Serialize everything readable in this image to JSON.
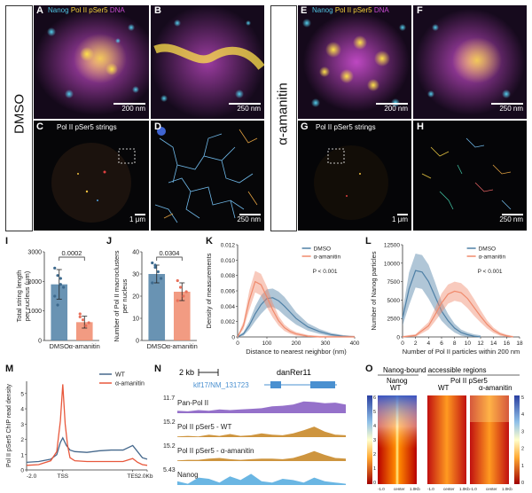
{
  "conditions": {
    "dmso": "DMSO",
    "amanitin": "α-amanitin"
  },
  "panels": {
    "A": "A",
    "B": "B",
    "C": "C",
    "D": "D",
    "E": "E",
    "F": "F",
    "G": "G",
    "H": "H",
    "I": "I",
    "J": "J",
    "K": "K",
    "L": "L",
    "M": "M",
    "N": "N",
    "O": "O"
  },
  "channel_legend": {
    "nanog": "Nanog",
    "pol2": "Pol II pSer5",
    "dna": "DNA"
  },
  "strings_label": "Pol II pSer5 strings",
  "scalebars": {
    "a": "200 nm",
    "b": "250 nm",
    "c": "1 μm",
    "d": "250 nm",
    "e": "200 nm",
    "f": "250 nm",
    "g": "1 μm",
    "h": "250 nm"
  },
  "colors": {
    "dmso": "#4f80a6",
    "amanitin": "#f08a6c",
    "nanog": "#4fc2e0",
    "pol2": "#f5d23c",
    "dna": "#c74bd1"
  },
  "chart_data": [
    {
      "panel": "I",
      "type": "bar",
      "categories": [
        "DMSO",
        "α-amanitin"
      ],
      "values": [
        1900,
        620
      ],
      "errors": [
        500,
        200
      ],
      "points": [
        [
          2450,
          2200,
          2100,
          1800,
          1500,
          1200,
          1900
        ],
        [
          900,
          700,
          500,
          600,
          800
        ]
      ],
      "ylabel": "Total string length\nper nucleus (μm)",
      "ylim": [
        0,
        3000
      ],
      "yticks": [
        0,
        1000,
        2000,
        3000
      ],
      "pvalue": "0.0002"
    },
    {
      "panel": "J",
      "type": "bar",
      "categories": [
        "DMSO",
        "α-amanitin"
      ],
      "values": [
        30,
        22
      ],
      "errors": [
        4,
        4
      ],
      "points": [
        [
          35,
          33,
          31,
          28,
          26,
          34
        ],
        [
          27,
          24,
          20,
          22,
          18
        ]
      ],
      "ylabel": "Number of Pol II macroclusters\nper nucleus",
      "ylim": [
        0,
        40
      ],
      "yticks": [
        0,
        10,
        20,
        30,
        40
      ],
      "pvalue": "0.0304"
    },
    {
      "panel": "K",
      "type": "line",
      "xlabel": "Distance to nearest neighbor (nm)",
      "ylabel": "Density of measurements",
      "xlim": [
        0,
        400
      ],
      "ylim": [
        0,
        0.012
      ],
      "xticks": [
        0,
        100,
        200,
        300,
        400
      ],
      "yticks": [
        0,
        0.002,
        0.004,
        0.006,
        0.008,
        0.01,
        0.012
      ],
      "annotation": "P < 0.001",
      "legend": "top-right",
      "series": [
        {
          "name": "DMSO",
          "x": [
            0,
            20,
            40,
            60,
            80,
            100,
            120,
            140,
            160,
            180,
            200,
            240,
            280,
            320,
            360,
            400
          ],
          "y": [
            0,
            0.0004,
            0.0015,
            0.003,
            0.0042,
            0.005,
            0.0051,
            0.0047,
            0.004,
            0.0032,
            0.0024,
            0.0013,
            0.0007,
            0.0003,
            0.0001,
            0
          ],
          "band": 0.0012
        },
        {
          "name": "α-amanitin",
          "x": [
            0,
            20,
            40,
            60,
            80,
            100,
            120,
            140,
            160,
            180,
            200,
            240,
            280,
            320,
            360,
            400
          ],
          "y": [
            0,
            0.0015,
            0.0048,
            0.0072,
            0.0068,
            0.0052,
            0.0035,
            0.0021,
            0.0012,
            0.0007,
            0.0004,
            0.0001,
            0,
            0,
            0,
            0
          ],
          "band": 0.0014
        }
      ]
    },
    {
      "panel": "L",
      "type": "line",
      "xlabel": "Number of Pol II particles within 200 nm",
      "ylabel": "Number of Nanog particles",
      "xlim": [
        0,
        18
      ],
      "ylim": [
        0,
        12500
      ],
      "xticks": [
        0,
        2,
        4,
        6,
        8,
        10,
        12,
        14,
        16,
        18
      ],
      "yticks": [
        0,
        2500,
        5000,
        7500,
        10000,
        12500
      ],
      "annotation": "P < 0.001",
      "legend": "top-right",
      "series": [
        {
          "name": "DMSO",
          "x": [
            0,
            1,
            2,
            3,
            4,
            5,
            6,
            7,
            8,
            9,
            10,
            11,
            12
          ],
          "y": [
            2500,
            6500,
            9000,
            8800,
            7500,
            5500,
            3500,
            2200,
            1200,
            600,
            300,
            100,
            0
          ],
          "band": 2300
        },
        {
          "name": "α-amanitin",
          "x": [
            0,
            2,
            4,
            5,
            6,
            7,
            8,
            9,
            10,
            11,
            12,
            13,
            14,
            15,
            16,
            17
          ],
          "y": [
            0,
            200,
            1500,
            3000,
            4600,
            5800,
            6200,
            6000,
            5200,
            4000,
            2800,
            1700,
            900,
            400,
            150,
            0
          ],
          "band": 1300
        }
      ]
    },
    {
      "panel": "M",
      "type": "line",
      "ylabel": "Pol II pSer5 ChIP read density",
      "xticks_labels": [
        "-2.0",
        "TSS",
        "TES",
        "2.0Kb"
      ],
      "yticks": [
        0,
        1,
        2,
        3,
        4,
        5
      ],
      "ylim": [
        0,
        5.8
      ],
      "legend": "top-right",
      "series": [
        {
          "name": "WT",
          "x": [
            0,
            10,
            20,
            25,
            28,
            30,
            33,
            36,
            40,
            50,
            60,
            70,
            80,
            88,
            92,
            96,
            100
          ],
          "y": [
            0.5,
            0.55,
            0.7,
            1.0,
            1.8,
            2.1,
            1.6,
            1.3,
            1.2,
            1.15,
            1.25,
            1.3,
            1.3,
            1.6,
            1.2,
            0.8,
            0.7
          ]
        },
        {
          "name": "α-amanitin",
          "x": [
            0,
            10,
            20,
            25,
            28,
            30,
            32,
            34,
            36,
            40,
            50,
            60,
            70,
            80,
            88,
            92,
            96,
            100
          ],
          "y": [
            0.3,
            0.35,
            0.6,
            1.2,
            3.2,
            5.6,
            3.0,
            1.6,
            0.8,
            0.6,
            0.55,
            0.55,
            0.55,
            0.55,
            0.75,
            0.5,
            0.35,
            0.3
          ]
        }
      ]
    }
  ],
  "track_panel": {
    "scale": "2 kb",
    "genome": "danRer11",
    "gene": "klf17/NM_131723",
    "tracks": [
      {
        "max": "11.7",
        "name": "Pan-Pol II",
        "color": "#8a62c4"
      },
      {
        "max": "15.2",
        "name": "Pol II pSer5 - WT",
        "color": "#c98a2a"
      },
      {
        "max": "15.2",
        "name": "Pol II pSer5 - α-amanitin",
        "color": "#c98a2a"
      },
      {
        "max": "5.43",
        "name": "Nanog",
        "color": "#5aaee0"
      }
    ]
  },
  "heatmap_panel": {
    "title": "Nanog-bound accessible regions",
    "groups": [
      {
        "name": "Nanog",
        "sub": [
          "WT"
        ]
      },
      {
        "name": "Pol II pSer5",
        "sub": [
          "WT",
          "α-amanitin"
        ]
      }
    ],
    "colorbar_left": [
      "6",
      "5",
      "4",
      "3",
      "2",
      "1",
      "0"
    ],
    "colorbar_right": [
      "5",
      "4",
      "3",
      "2",
      "1",
      "0"
    ],
    "xaxis": [
      "-1.0",
      "center",
      "1.0Kb"
    ]
  }
}
